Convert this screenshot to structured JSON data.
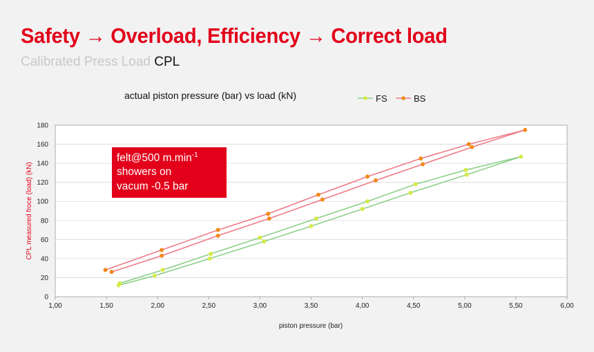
{
  "header": {
    "title_part1": "Safety",
    "arrow": "→",
    "title_part2": "Overload, Efficiency",
    "title_part3": "Correct load",
    "subtitle_grey": "Calibrated Press Load",
    "subtitle_dark": "CPL"
  },
  "colors": {
    "brand_red": "#e2001a",
    "fs_line": "#8dcf8a",
    "fs_marker": "#d7ea4a",
    "bs_line": "#ee7b86",
    "bs_marker": "#f08a1c"
  },
  "chart_data": {
    "type": "scatter",
    "title": "actual piston pressure (bar) vs load (kN)",
    "xlabel": "piston pressure (bar)",
    "ylabel": "CPL measured froce (load) (kN)",
    "xlim": [
      1.0,
      6.0
    ],
    "ylim": [
      0,
      180
    ],
    "x_ticks": [
      1.0,
      1.5,
      2.0,
      2.5,
      3.0,
      3.5,
      4.0,
      4.5,
      5.0,
      5.5,
      6.0
    ],
    "x_tick_labels": [
      "1,00",
      "1,50",
      "2,00",
      "2,50",
      "3,00",
      "3,50",
      "4,00",
      "4,50",
      "5,00",
      "5,50",
      "6,00"
    ],
    "y_ticks": [
      0,
      20,
      40,
      60,
      80,
      100,
      120,
      140,
      160,
      180
    ],
    "y_tick_labels": [
      "0",
      "20",
      "40",
      "60",
      "80",
      "100",
      "120",
      "140",
      "160",
      "180"
    ],
    "grid": true,
    "legend_position": "top-right",
    "annotation": {
      "line1": "felt@500 m.min",
      "line1_sup": "-1",
      "line2": "showers on",
      "line3": "vacum -0.5 bar"
    },
    "series": [
      {
        "name": "FS",
        "points": [
          [
            1.62,
            12
          ],
          [
            1.97,
            22
          ],
          [
            2.51,
            40
          ],
          [
            3.04,
            58
          ],
          [
            3.5,
            74
          ],
          [
            4.0,
            92
          ],
          [
            4.47,
            109
          ],
          [
            5.02,
            128
          ],
          [
            5.55,
            147
          ],
          [
            5.01,
            133
          ],
          [
            4.52,
            118
          ],
          [
            4.05,
            100
          ],
          [
            3.55,
            82
          ],
          [
            3.0,
            62
          ],
          [
            2.52,
            45
          ],
          [
            2.05,
            28
          ],
          [
            1.63,
            14
          ]
        ]
      },
      {
        "name": "BS",
        "points": [
          [
            1.49,
            28
          ],
          [
            2.04,
            49
          ],
          [
            2.59,
            70
          ],
          [
            3.08,
            87
          ],
          [
            3.57,
            107
          ],
          [
            4.05,
            126
          ],
          [
            4.57,
            145
          ],
          [
            5.04,
            160
          ],
          [
            5.59,
            175
          ],
          [
            5.07,
            157
          ],
          [
            4.59,
            139
          ],
          [
            4.13,
            122
          ],
          [
            3.61,
            102
          ],
          [
            3.09,
            82
          ],
          [
            2.59,
            64
          ],
          [
            2.04,
            43
          ],
          [
            1.55,
            26
          ]
        ]
      }
    ]
  }
}
